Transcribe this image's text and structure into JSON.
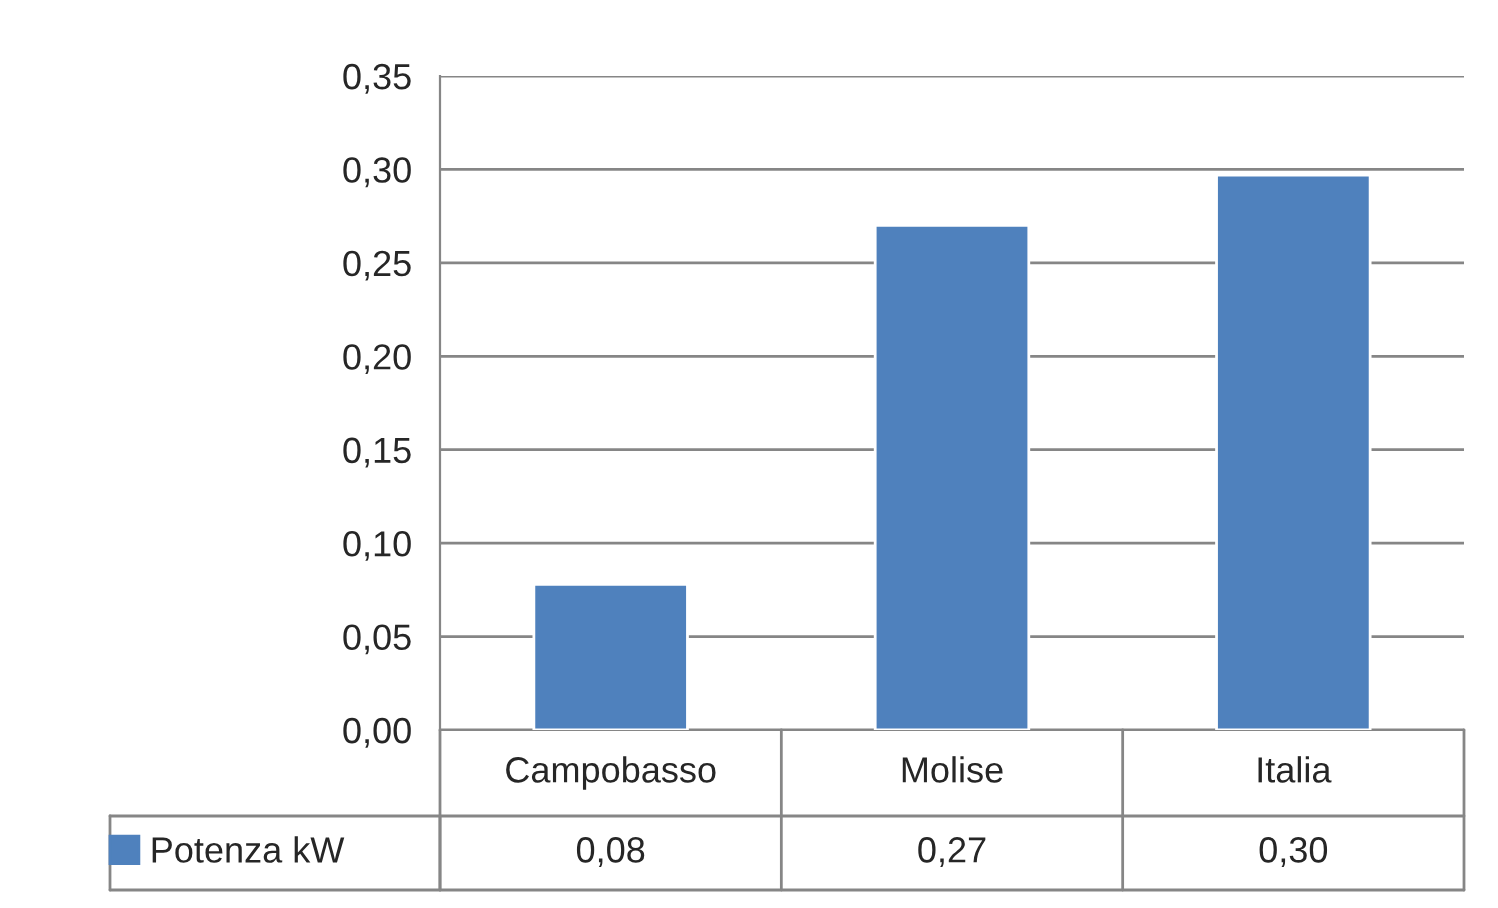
{
  "chart_data": {
    "type": "bar",
    "categories": [
      "Campobasso",
      "Molise",
      "Italia"
    ],
    "series": [
      {
        "name": "Potenza kW",
        "color": "#4f81bd",
        "values": [
          0.078,
          0.27,
          0.297
        ],
        "value_labels": [
          "0,08",
          "0,27",
          "0,30"
        ]
      }
    ],
    "ylim": [
      0,
      0.35
    ],
    "yticks": [
      {
        "value": 0,
        "label": "0,00"
      },
      {
        "value": 0.05,
        "label": "0,05"
      },
      {
        "value": 0.1,
        "label": "0,10"
      },
      {
        "value": 0.15,
        "label": "0,15"
      },
      {
        "value": 0.2,
        "label": "0,20"
      },
      {
        "value": 0.25,
        "label": "0,25"
      },
      {
        "value": 0.3,
        "label": "0,30"
      },
      {
        "value": 0.35,
        "label": "0,35"
      }
    ],
    "grid": "y",
    "legend": "bottom left"
  }
}
